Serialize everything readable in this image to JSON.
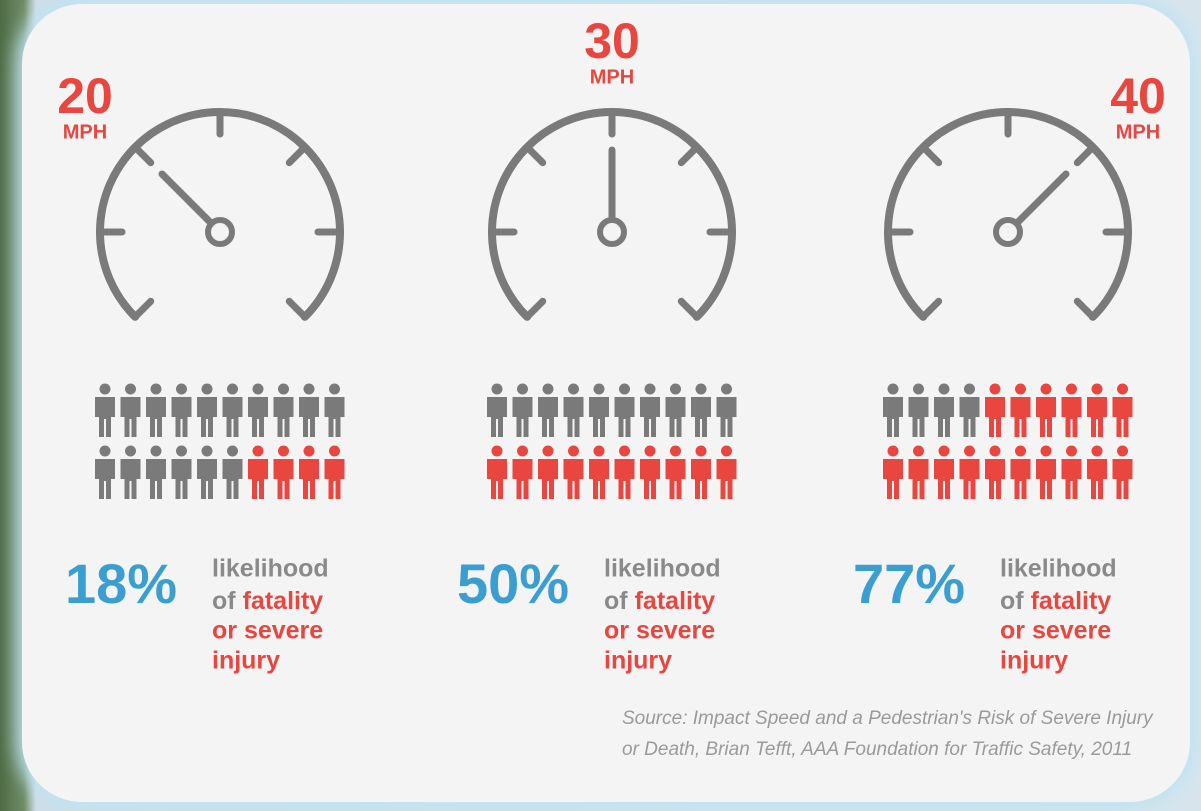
{
  "panels": [
    {
      "speed": 20,
      "unit": "MPH",
      "figures": {
        "total": 20,
        "highlighted": 4
      },
      "percent": "18%",
      "caption": {
        "line1": "likelihood",
        "of": "of",
        "emphasis": "fatality",
        "line3": "or severe",
        "line4": "injury"
      }
    },
    {
      "speed": 30,
      "unit": "MPH",
      "figures": {
        "total": 20,
        "highlighted": 10
      },
      "percent": "50%",
      "caption": {
        "line1": "likelihood",
        "of": "of",
        "emphasis": "fatality",
        "line3": "or severe",
        "line4": "injury"
      }
    },
    {
      "speed": 40,
      "unit": "MPH",
      "figures": {
        "total": 20,
        "highlighted": 16
      },
      "percent": "77%",
      "caption": {
        "line1": "likelihood",
        "of": "of",
        "emphasis": "fatality",
        "line3": "or severe",
        "line4": "injury"
      }
    }
  ],
  "source": "Source: Impact Speed and a Pedestrian's Risk of Severe Injury or Death, Brian Tefft, AAA Foundation for Traffic Safety, 2011"
}
